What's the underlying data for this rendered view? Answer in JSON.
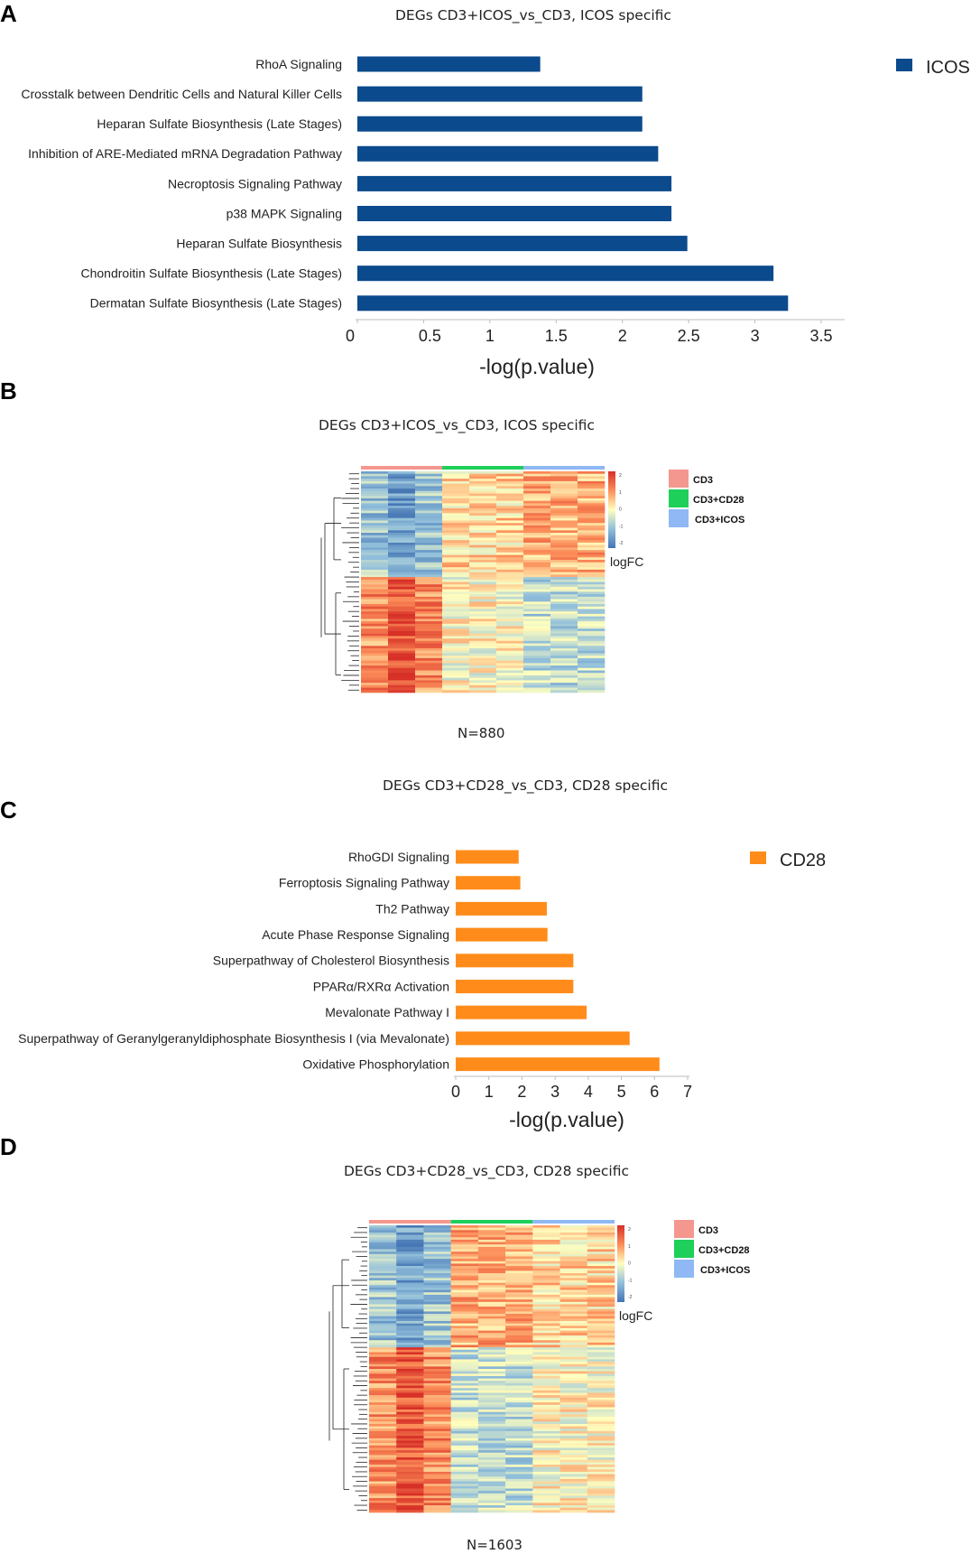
{
  "panels": {
    "a": {
      "letter": "A"
    },
    "b": {
      "letter": "B"
    },
    "c": {
      "letter": "C"
    },
    "d": {
      "letter": "D"
    }
  },
  "chart_data": [
    {
      "id": "A",
      "type": "bar",
      "orientation": "horizontal",
      "title": "DEGs  CD3+ICOS_vs_CD3, ICOS specific",
      "categories": [
        "RhoA Signaling",
        "Crosstalk between Dendritic Cells and Natural Killer Cells",
        "Heparan Sulfate Biosynthesis (Late Stages)",
        "Inhibition of ARE-Mediated mRNA Degradation Pathway",
        "Necroptosis Signaling Pathway",
        "p38 MAPK Signaling",
        "Heparan Sulfate Biosynthesis",
        "Chondroitin Sulfate Biosynthesis (Late Stages)",
        "Dermatan Sulfate Biosynthesis (Late Stages)"
      ],
      "series": [
        {
          "name": "ICOS",
          "color": "#0b4a8c",
          "values": [
            1.38,
            2.15,
            2.15,
            2.27,
            2.37,
            2.37,
            2.49,
            3.14,
            3.25
          ]
        }
      ],
      "xlabel": "-log(p.value)",
      "xticks": [
        "0",
        "0.5",
        "1",
        "1.5",
        "2",
        "2.5",
        "3",
        "3.5"
      ],
      "xlim": [
        0,
        3.5
      ],
      "legend": "top-right"
    },
    {
      "id": "B",
      "type": "heatmap",
      "title": "DEGs  CD3+ICOS_vs_CD3, ICOS specific",
      "groups": [
        {
          "name": "CD3",
          "color": "#f4978e"
        },
        {
          "name": "CD3+CD28",
          "color": "#1ecf5a"
        },
        {
          "name": "CD3+ICOS",
          "color": "#8fb8f5"
        }
      ],
      "colorbar_label": "logFC",
      "colorbar_ticks": [
        "2",
        "1",
        "0",
        "-1",
        "-2"
      ],
      "n_label": "N=880",
      "n": 880,
      "samples_per_group": 3,
      "pattern": "genes down in CD3 / up in CD3+ICOS (top cluster), up in CD3 / down in CD3+ICOS (bottom cluster)"
    },
    {
      "id": "C",
      "type": "bar",
      "orientation": "horizontal",
      "title": "DEGs  CD3+CD28_vs_CD3, CD28 specific",
      "categories": [
        "RhoGDI Signaling",
        "Ferroptosis Signaling Pathway",
        "Th2 Pathway",
        "Acute Phase Response Signaling",
        "Superpathway of Cholesterol Biosynthesis",
        "PPARα/RXRα Activation",
        "Mevalonate Pathway I",
        "Superpathway of Geranylgeranyldiphosphate Biosynthesis I (via Mevalonate)",
        "Oxidative Phosphorylation"
      ],
      "series": [
        {
          "name": "CD28",
          "color": "#ff8c1a",
          "values": [
            1.9,
            1.95,
            2.75,
            2.77,
            3.55,
            3.55,
            3.95,
            5.25,
            6.15
          ]
        }
      ],
      "xlabel": "-log(p.value)",
      "xticks": [
        "0",
        "1",
        "2",
        "3",
        "4",
        "5",
        "6",
        "7"
      ],
      "xlim": [
        0,
        7
      ],
      "legend": "top-right"
    },
    {
      "id": "D",
      "type": "heatmap",
      "title": "DEGs  CD3+CD28_vs_CD3, CD28 specific",
      "groups": [
        {
          "name": "CD3",
          "color": "#f4978e"
        },
        {
          "name": "CD3+CD28",
          "color": "#1ecf5a"
        },
        {
          "name": "CD3+ICOS",
          "color": "#8fb8f5"
        }
      ],
      "colorbar_label": "logFC",
      "colorbar_ticks": [
        "2",
        "1",
        "0",
        "-1",
        "-2"
      ],
      "n_label": "N=1603",
      "n": 1603,
      "samples_per_group": 3,
      "pattern": "genes down in CD3 / up in CD3+CD28 (top cluster), up in CD3 / down in CD3+CD28 (bottom cluster)"
    }
  ]
}
